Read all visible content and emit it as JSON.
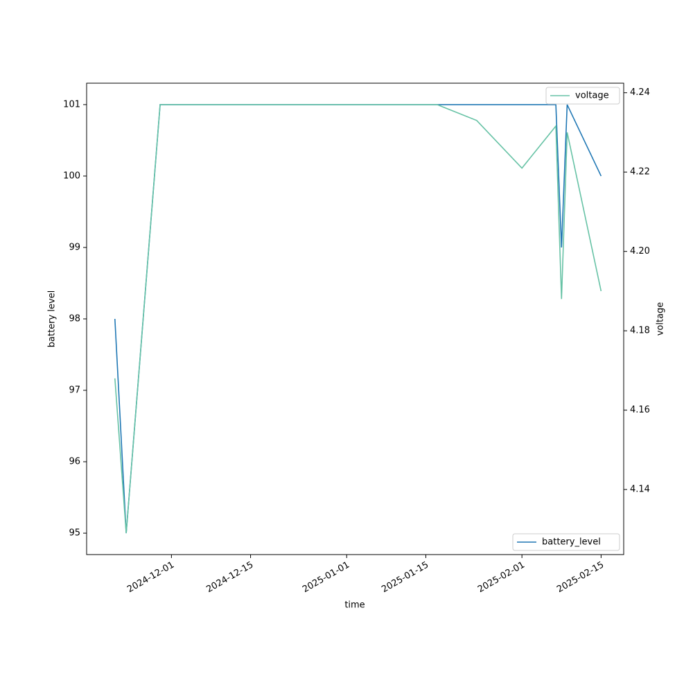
{
  "chart_data": {
    "type": "line",
    "x_label": "time",
    "y_label": "battery level",
    "y2_label": "voltage",
    "x": [
      "2024-11-21",
      "2024-11-23",
      "2024-11-29",
      "2025-01-17",
      "2025-01-24",
      "2025-02-01",
      "2025-02-07",
      "2025-02-08",
      "2025-02-09",
      "2025-02-15"
    ],
    "series": [
      {
        "name": "battery_level",
        "color": "#1f77b4",
        "legend": "lower right",
        "values": [
          98,
          95,
          101,
          101,
          101,
          101,
          101,
          99,
          101,
          100
        ]
      },
      {
        "name": "voltage",
        "color": "#66c2a5",
        "axis": "y2",
        "legend": "upper right",
        "values": [
          4.168,
          4.129,
          4.237,
          4.237,
          4.233,
          4.221,
          4.2316,
          4.188,
          4.23,
          4.19
        ]
      }
    ],
    "xlim": [
      "2024-11-16",
      "2025-02-19"
    ],
    "xticks": [
      "2024-12-01",
      "2024-12-15",
      "2025-01-01",
      "2025-01-15",
      "2025-02-01",
      "2025-02-15"
    ],
    "ylim": [
      94.7,
      101.3
    ],
    "yticks": [
      95,
      96,
      97,
      98,
      99,
      100,
      101
    ],
    "y2lim": [
      4.1236,
      4.2424
    ],
    "y2ticks": [
      4.14,
      4.16,
      4.18,
      {
        "value": 4.2,
        "label": "4.20"
      },
      4.22,
      4.24
    ],
    "grid": false
  }
}
